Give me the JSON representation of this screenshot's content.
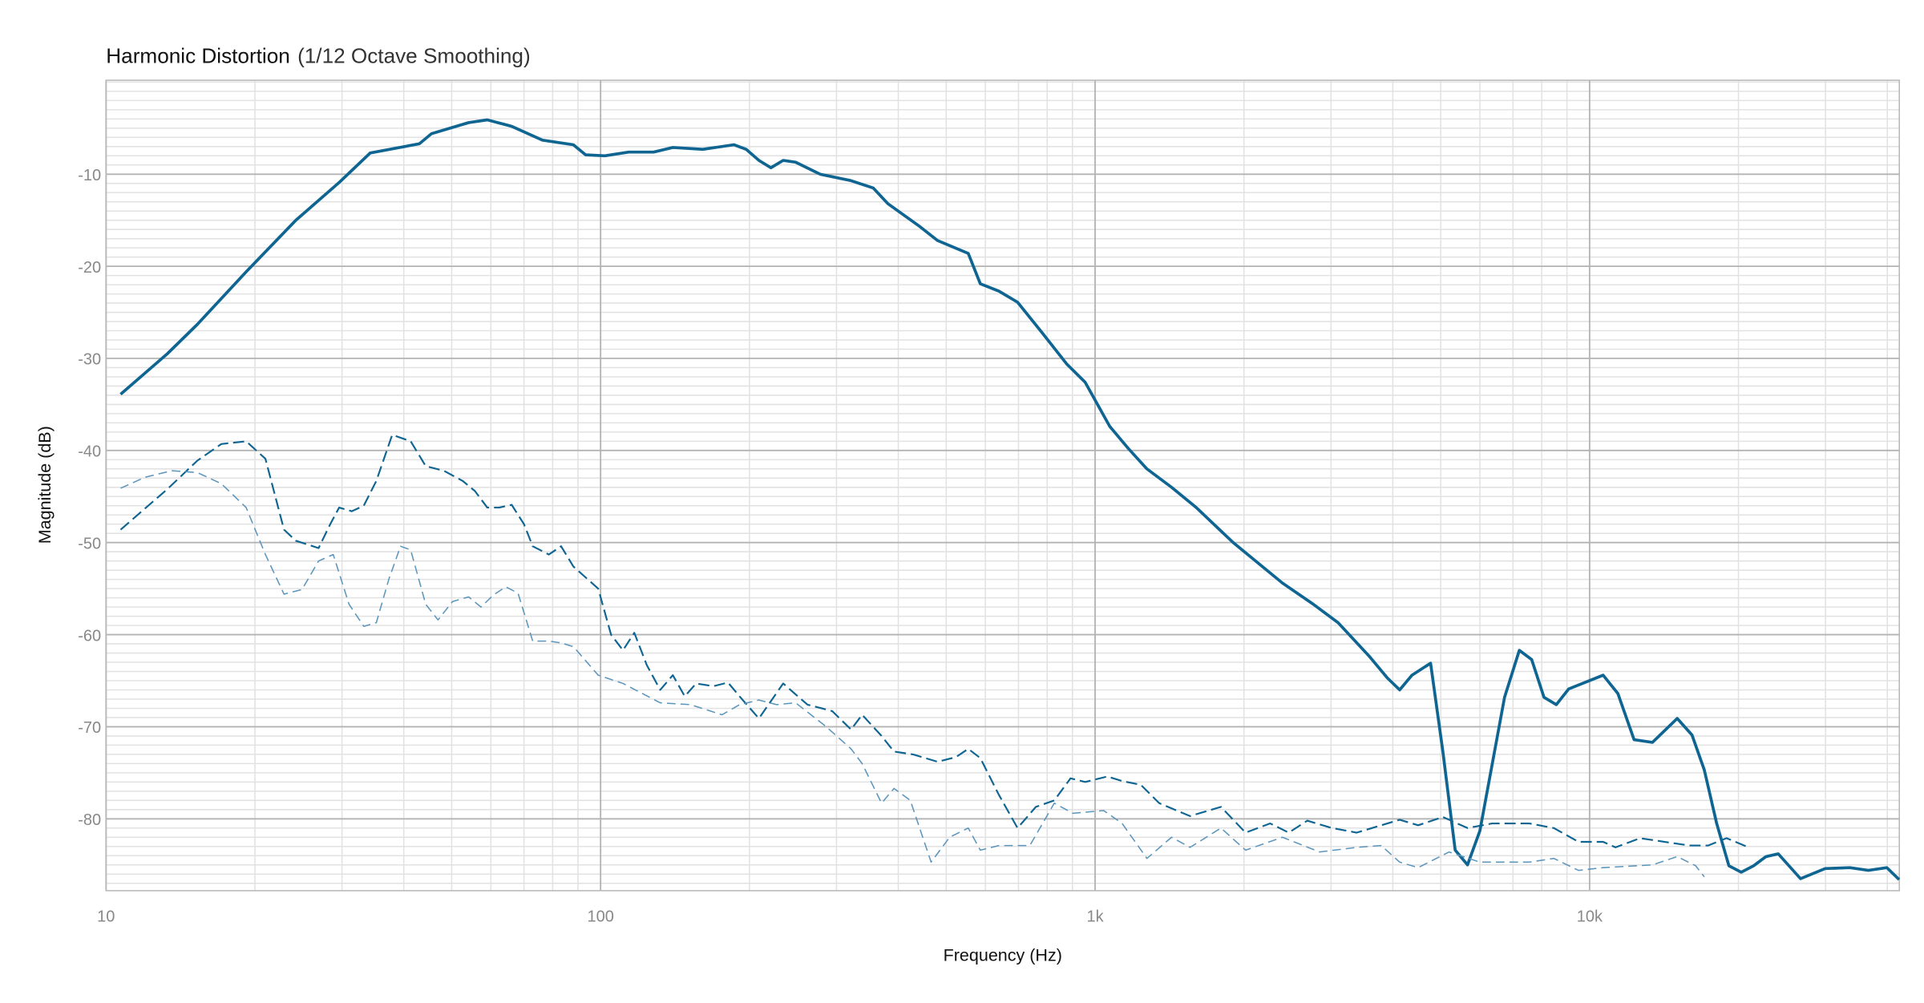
{
  "chart_data": {
    "type": "line",
    "title": "Harmonic Distortion",
    "subtitle": "(1/12 Octave Smoothing)",
    "x_label": "Frequency (Hz)",
    "y_label": "Magnitude (dB)",
    "x_scale": "log",
    "grid": true,
    "minor_grid": true,
    "xlim": [
      10,
      42300
    ],
    "ylim": [
      -87.8,
      0.2
    ],
    "xticks": [
      {
        "value": 10,
        "label": "10"
      },
      100,
      {
        "value": 1000,
        "label": "1k"
      },
      {
        "value": 10000,
        "label": "10k"
      }
    ],
    "yticks": [
      -80,
      -70,
      -60,
      -50,
      -40,
      -30,
      -20,
      -10
    ],
    "series": [
      {
        "color": "#0f6592",
        "dash": "solid",
        "x": [
          10.7,
          13.3,
          15.3,
          19.2,
          24.2,
          29.6,
          34.2,
          43.0,
          45.5,
          54.1,
          59.0,
          66.1,
          76.3,
          88.1,
          93.3,
          102,
          114,
          128,
          140,
          161,
          186,
          197,
          209,
          221,
          234,
          248,
          278,
          321,
          356,
          381,
          440,
          480,
          554,
          586,
          639,
          697,
          781,
          876,
          955,
          1071,
          1168,
          1273,
          1428,
          1602,
          1902,
          2393,
          2763,
          3100,
          3578,
          3899,
          4130,
          4374,
          4769,
          5050,
          5348,
          5664,
          6000,
          6730,
          7210,
          7635,
          8086,
          8564,
          9070,
          10650,
          11410,
          12300,
          13400,
          15040,
          16110,
          17060,
          18070,
          19130,
          20260,
          21460,
          22730,
          24070,
          26700,
          29950,
          33590,
          36620,
          39910,
          42260
        ],
        "values": [
          -33.9,
          -29.5,
          -26.3,
          -20.6,
          -15.0,
          -10.9,
          -7.7,
          -6.7,
          -5.6,
          -4.4,
          -4.1,
          -4.8,
          -6.3,
          -6.8,
          -7.9,
          -8.0,
          -7.6,
          -7.6,
          -7.1,
          -7.3,
          -6.8,
          -7.3,
          -8.5,
          -9.3,
          -8.5,
          -8.7,
          -10.0,
          -10.7,
          -11.5,
          -13.2,
          -15.6,
          -17.2,
          -18.6,
          -21.9,
          -22.7,
          -23.9,
          -27.2,
          -30.6,
          -32.6,
          -37.4,
          -39.8,
          -42.0,
          -44.0,
          -46.2,
          -50.0,
          -54.4,
          -56.7,
          -58.7,
          -62.3,
          -64.7,
          -66.0,
          -64.4,
          -63.1,
          -72.7,
          -83.4,
          -85.0,
          -81.3,
          -66.8,
          -61.7,
          -62.7,
          -66.8,
          -67.6,
          -65.9,
          -64.4,
          -66.4,
          -71.4,
          -71.7,
          -69.1,
          -70.9,
          -74.7,
          -80.5,
          -85.1,
          -85.8,
          -85.1,
          -84.1,
          -83.8,
          -86.5,
          -85.4,
          -85.3,
          -85.6,
          -85.3,
          -86.6
        ]
      },
      {
        "color": "#0f6592",
        "dash": "dashed",
        "x": [
          10.7,
          13.3,
          15.3,
          17.1,
          19.2,
          21.0,
          22.9,
          24.2,
          26.9,
          28.4,
          29.6,
          31.4,
          33.2,
          35.2,
          37.9,
          41.3,
          44.3,
          48.2,
          52.6,
          55.7,
          59.0,
          62.4,
          66.1,
          70.0,
          72.9,
          78.6,
          83.2,
          88.1,
          98.9,
          105,
          111,
          117,
          124,
          132,
          140,
          148,
          156,
          169,
          181,
          191,
          209,
          234,
          262,
          294,
          321,
          338,
          370,
          392,
          428,
          480,
          523,
          554,
          586,
          639,
          697,
          759,
          827,
          892,
          955,
          1059,
          1134,
          1237,
          1348,
          1556,
          1797,
          2015,
          2260,
          2464,
          2686,
          3012,
          3380,
          3790,
          4130,
          4501,
          5050,
          5664,
          6353,
          7549,
          8467,
          9497,
          10650,
          11280,
          12650,
          14190,
          15920,
          17360,
          18920,
          20980
        ],
        "values": [
          -48.6,
          -44.2,
          -41.1,
          -39.3,
          -39.0,
          -40.9,
          -48.6,
          -49.8,
          -50.6,
          -48.0,
          -46.2,
          -46.6,
          -46.0,
          -43.3,
          -38.3,
          -39.0,
          -41.7,
          -42.2,
          -43.3,
          -44.4,
          -46.2,
          -46.2,
          -45.9,
          -48.0,
          -50.4,
          -51.3,
          -50.4,
          -52.6,
          -55.0,
          -60.0,
          -61.7,
          -59.8,
          -63.3,
          -66.0,
          -64.4,
          -66.7,
          -65.3,
          -65.6,
          -65.2,
          -66.7,
          -69.1,
          -65.3,
          -67.6,
          -68.3,
          -70.3,
          -68.7,
          -71.0,
          -72.7,
          -73.0,
          -73.8,
          -73.3,
          -72.4,
          -73.4,
          -77.4,
          -81.0,
          -78.7,
          -78.0,
          -75.6,
          -76.0,
          -75.4,
          -75.9,
          -76.3,
          -78.3,
          -79.7,
          -78.7,
          -81.5,
          -80.5,
          -81.5,
          -80.2,
          -81.0,
          -81.5,
          -80.7,
          -80.1,
          -80.7,
          -79.8,
          -81.0,
          -80.5,
          -80.5,
          -81.0,
          -82.5,
          -82.5,
          -83.1,
          -82.1,
          -82.5,
          -82.9,
          -82.9,
          -82.1,
          -83.1
        ]
      },
      {
        "color": "#5b95bb",
        "dash": "light-dashed",
        "x": [
          10.7,
          12.0,
          13.6,
          15.3,
          17.1,
          19.2,
          21.0,
          22.9,
          24.9,
          26.9,
          28.8,
          31.0,
          33.2,
          35.2,
          37.3,
          39.4,
          41.3,
          44.3,
          46.9,
          50.2,
          54.1,
          57.3,
          60.7,
          64.3,
          68.1,
          72.9,
          78.6,
          83.2,
          88.1,
          98.9,
          111,
          132,
          152,
          176,
          191,
          209,
          227,
          248,
          286,
          321,
          338,
          370,
          392,
          423,
          466,
          508,
          554,
          586,
          639,
          738,
          827,
          902,
          1041,
          1134,
          1273,
          1428,
          1556,
          1797,
          2015,
          2393,
          2844,
          3380,
          3790,
          4130,
          4501,
          5196,
          6000,
          7549,
          8467,
          9497,
          10650,
          13400,
          15040,
          16390,
          17060
        ],
        "values": [
          -44.1,
          -42.9,
          -42.2,
          -42.4,
          -43.6,
          -46.2,
          -51.3,
          -55.6,
          -55.1,
          -52.0,
          -51.3,
          -56.7,
          -59.1,
          -58.7,
          -54.0,
          -50.4,
          -50.8,
          -56.7,
          -58.4,
          -56.4,
          -55.9,
          -57.0,
          -55.7,
          -54.8,
          -55.5,
          -60.7,
          -60.7,
          -60.9,
          -61.3,
          -64.4,
          -65.3,
          -67.4,
          -67.6,
          -68.7,
          -67.6,
          -67.1,
          -67.6,
          -67.4,
          -70.0,
          -72.4,
          -74.0,
          -78.3,
          -76.7,
          -78.0,
          -84.7,
          -82.0,
          -81.0,
          -83.4,
          -82.9,
          -82.9,
          -78.3,
          -79.4,
          -79.1,
          -80.5,
          -84.3,
          -82.0,
          -83.1,
          -81.0,
          -83.4,
          -82.0,
          -83.6,
          -83.1,
          -82.9,
          -84.7,
          -85.3,
          -83.6,
          -84.7,
          -84.7,
          -84.3,
          -85.6,
          -85.3,
          -85.0,
          -84.1,
          -85.1,
          -86.3
        ]
      }
    ]
  }
}
